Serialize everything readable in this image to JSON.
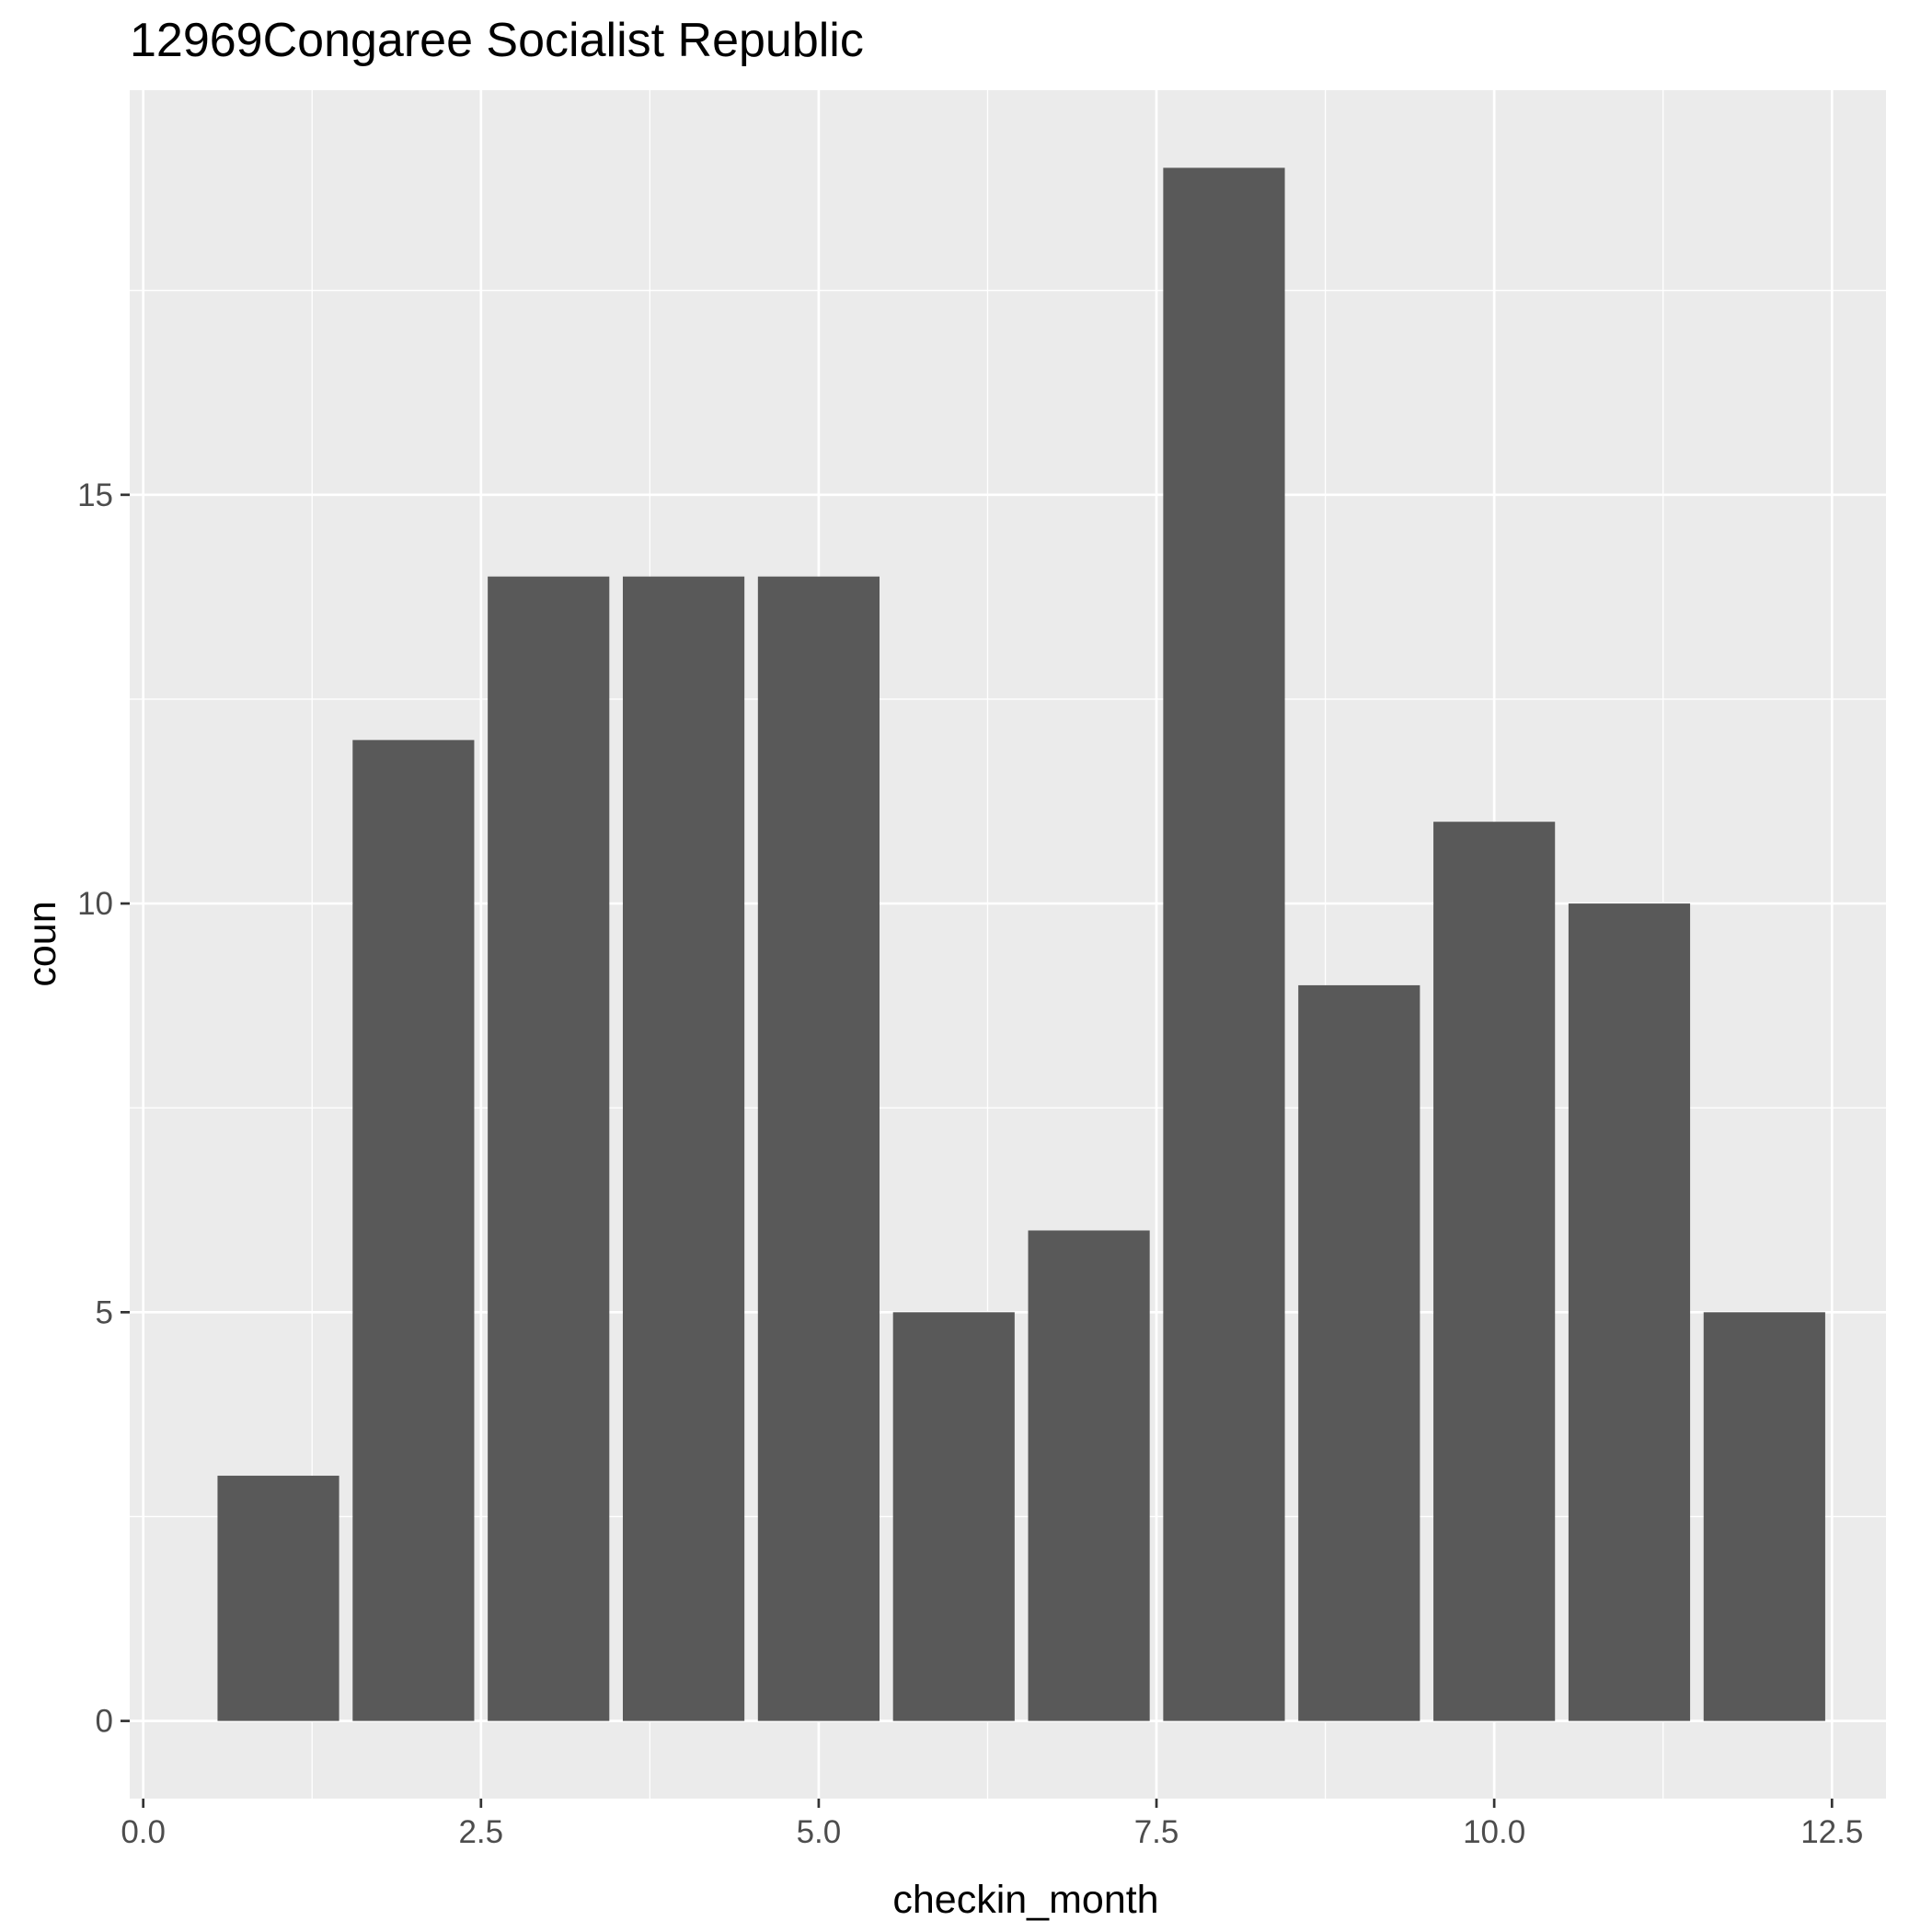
{
  "chart_data": {
    "type": "bar",
    "title": "12969Congaree Socialist Republic",
    "xlabel": "checkin_month",
    "ylabel": "coun",
    "x": [
      1,
      2,
      3,
      4,
      5,
      6,
      7,
      8,
      9,
      10,
      11,
      12
    ],
    "values": [
      3,
      12,
      14,
      14,
      14,
      5,
      6,
      19,
      9,
      11,
      10,
      5
    ],
    "xlim": [
      -0.1,
      12.9
    ],
    "ylim": [
      -0.95,
      19.95
    ],
    "x_ticks": [
      0,
      2.5,
      5,
      7.5,
      10,
      12.5
    ],
    "x_tick_labels": [
      "0.0",
      "2.5",
      "5.0",
      "7.5",
      "10.0",
      "12.5"
    ],
    "y_ticks": [
      0,
      5,
      10,
      15
    ],
    "y_tick_labels": [
      "0",
      "5",
      "10",
      "15"
    ],
    "bar_width": 0.9,
    "grid": true,
    "colors": {
      "bar": "#595959",
      "panel": "#ebebeb",
      "grid": "#ffffff",
      "text": "#000000",
      "tick_text": "#4d4d4d",
      "tick": "#333333"
    }
  }
}
